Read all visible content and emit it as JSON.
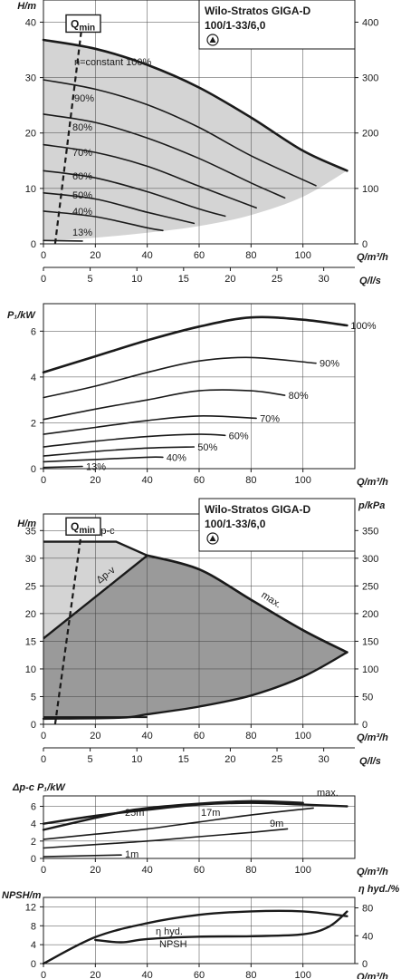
{
  "colors": {
    "light_region": "#d4d4d4",
    "dark_region": "#9a9a9a",
    "curve": "#1a1a1a",
    "background": "#ffffff"
  },
  "icon": "wilo-pump-triangle-icon",
  "chart_data": [
    {
      "type": "line",
      "title": "Wilo-Stratos GIGA-D",
      "subtitle": "100/1-33/6,0",
      "xlabel": "Q/m³/h",
      "ylabel": "H/m",
      "y2label": "p/kPa",
      "x2label": "Q/l/s",
      "xlim": [
        0,
        120
      ],
      "ylim": [
        0,
        44
      ],
      "y2lim": [
        0,
        440
      ],
      "x2lim": [
        0,
        33.33
      ],
      "x_ticks": [
        "0",
        "20",
        "40",
        "60",
        "80",
        "100"
      ],
      "y_ticks": [
        "0",
        "10",
        "20",
        "30",
        "40"
      ],
      "y2_ticks": [
        "0",
        "100",
        "200",
        "300",
        "400"
      ],
      "x2_ticks": [
        "0",
        "5",
        "10",
        "15",
        "20",
        "25",
        "30"
      ],
      "qmin_label": "Q",
      "qmin_sub": "min",
      "qmin_line": {
        "x": [
          4.5,
          15
        ],
        "y": [
          0,
          40
        ]
      },
      "series": [
        {
          "label": "n=constant 100%",
          "x": [
            0,
            20,
            40,
            60,
            80,
            100,
            117
          ],
          "y": [
            36.8,
            35.2,
            32.3,
            28.2,
            22.8,
            16.8,
            13.2
          ]
        },
        {
          "label": "90%",
          "x": [
            0,
            20,
            40,
            60,
            80,
            105
          ],
          "y": [
            29.6,
            27.9,
            25.1,
            21.0,
            15.9,
            10.5
          ]
        },
        {
          "label": "80%",
          "x": [
            0,
            20,
            40,
            60,
            80,
            93
          ],
          "y": [
            23.4,
            21.9,
            19.1,
            15.4,
            11.0,
            8.3
          ]
        },
        {
          "label": "70%",
          "x": [
            0,
            20,
            40,
            60,
            82
          ],
          "y": [
            17.9,
            16.5,
            14.0,
            10.4,
            6.5
          ]
        },
        {
          "label": "60%",
          "x": [
            0,
            20,
            40,
            60,
            70
          ],
          "y": [
            13.2,
            11.9,
            9.4,
            6.3,
            5.0
          ]
        },
        {
          "label": "50%",
          "x": [
            0,
            20,
            40,
            58
          ],
          "y": [
            9.2,
            8.1,
            5.7,
            3.7
          ]
        },
        {
          "label": "40%",
          "x": [
            0,
            20,
            40,
            46
          ],
          "y": [
            5.9,
            4.9,
            2.9,
            2.4
          ]
        },
        {
          "label": "13%",
          "x": [
            0,
            15
          ],
          "y": [
            0.6,
            0.5
          ]
        }
      ],
      "region_boundary_x": [
        117,
        100,
        80,
        60,
        40,
        20,
        0
      ],
      "region_boundary_y": [
        13.2,
        8.5,
        5.2,
        3.2,
        2.0,
        1.1,
        0.5
      ]
    },
    {
      "type": "line",
      "xlabel": "Q/m³/h",
      "ylabel": "P₁/kW",
      "xlim": [
        0,
        120
      ],
      "ylim": [
        0,
        7.2
      ],
      "x_ticks": [
        "0",
        "20",
        "40",
        "60",
        "80",
        "100"
      ],
      "y_ticks": [
        "0",
        "2",
        "4",
        "6"
      ],
      "series": [
        {
          "label": "100%",
          "x": [
            0,
            20,
            40,
            60,
            80,
            100,
            117
          ],
          "y": [
            4.2,
            4.9,
            5.6,
            6.2,
            6.6,
            6.5,
            6.25
          ]
        },
        {
          "label": "90%",
          "x": [
            0,
            20,
            40,
            60,
            80,
            105
          ],
          "y": [
            3.1,
            3.6,
            4.2,
            4.7,
            4.85,
            4.6
          ]
        },
        {
          "label": "80%",
          "x": [
            0,
            20,
            40,
            60,
            80,
            93
          ],
          "y": [
            2.15,
            2.6,
            3.0,
            3.4,
            3.4,
            3.2
          ]
        },
        {
          "label": "70%",
          "x": [
            0,
            20,
            40,
            60,
            82
          ],
          "y": [
            1.5,
            1.8,
            2.1,
            2.3,
            2.2
          ]
        },
        {
          "label": "60%",
          "x": [
            0,
            20,
            40,
            60,
            70
          ],
          "y": [
            0.95,
            1.2,
            1.4,
            1.5,
            1.45
          ]
        },
        {
          "label": "50%",
          "x": [
            0,
            20,
            40,
            58
          ],
          "y": [
            0.55,
            0.75,
            0.9,
            0.95
          ]
        },
        {
          "label": "40%",
          "x": [
            0,
            20,
            40,
            46
          ],
          "y": [
            0.3,
            0.4,
            0.5,
            0.5
          ]
        },
        {
          "label": "13%",
          "x": [
            0,
            15
          ],
          "y": [
            0.05,
            0.1
          ]
        }
      ]
    },
    {
      "type": "area",
      "title": "Wilo-Stratos GIGA-D",
      "subtitle": "100/1-33/6,0",
      "xlabel": "Q/m³/h",
      "ylabel": "H/m",
      "y2label": "p/kPa",
      "x2label": "Q/l/s",
      "xlim": [
        0,
        120
      ],
      "ylim": [
        0,
        38
      ],
      "y2lim": [
        0,
        380
      ],
      "x2lim": [
        0,
        33.33
      ],
      "x_ticks": [
        "0",
        "20",
        "40",
        "60",
        "80",
        "100"
      ],
      "y_ticks": [
        "0",
        "5",
        "10",
        "15",
        "20",
        "25",
        "30",
        "35"
      ],
      "y2_ticks": [
        "0",
        "50",
        "100",
        "150",
        "200",
        "250",
        "300",
        "350"
      ],
      "x2_ticks": [
        "0",
        "5",
        "10",
        "15",
        "20",
        "25",
        "30"
      ],
      "qmin_label": "Q",
      "qmin_sub": "min",
      "qmin_line": {
        "x": [
          4.5,
          15
        ],
        "y": [
          0,
          36
        ]
      },
      "labels": {
        "dp_c": "Δp-c",
        "dp_v": "Δp-v",
        "max": "max."
      },
      "dp_c": {
        "x": [
          0,
          28,
          40
        ],
        "y": [
          33,
          33,
          30.5
        ]
      },
      "dp_v": {
        "x": [
          0,
          40
        ],
        "y": [
          15.5,
          30.5
        ]
      },
      "max_curve": {
        "x": [
          40,
          60,
          80,
          100,
          117
        ],
        "y": [
          30.5,
          28,
          22.5,
          17,
          13
        ]
      },
      "bottom_curve": {
        "x": [
          117,
          100,
          80,
          60,
          40,
          30,
          0
        ],
        "y": [
          13,
          8.6,
          5.2,
          3.2,
          1.8,
          1.2,
          1.0
        ]
      },
      "min_line": {
        "x": [
          0,
          40
        ],
        "y": [
          1.3,
          1.3
        ]
      }
    },
    {
      "type": "line",
      "xlabel": "Q/m³/h",
      "ylabel": "Δp-c P₁/kW",
      "xlim": [
        0,
        120
      ],
      "ylim": [
        0,
        7.2
      ],
      "x_ticks": [
        "0",
        "20",
        "40",
        "60",
        "80",
        "100"
      ],
      "y_ticks": [
        "0",
        "2",
        "4",
        "6"
      ],
      "series": [
        {
          "label": "max.",
          "x": [
            0,
            20,
            40,
            60,
            80,
            100,
            117
          ],
          "y": [
            4.0,
            4.9,
            5.6,
            6.2,
            6.4,
            6.2,
            6.0
          ]
        },
        {
          "label": "25m",
          "x": [
            0,
            28,
            40,
            60,
            80,
            100
          ],
          "y": [
            3.3,
            5.2,
            5.8,
            6.3,
            6.6,
            6.4
          ]
        },
        {
          "label": "17m",
          "x": [
            0,
            20,
            40,
            60,
            80,
            104
          ],
          "y": [
            2.2,
            2.8,
            3.4,
            4.2,
            5.0,
            5.8
          ]
        },
        {
          "label": "9m",
          "x": [
            0,
            20,
            40,
            60,
            80,
            94
          ],
          "y": [
            1.2,
            1.6,
            2.0,
            2.5,
            3.0,
            3.4
          ]
        },
        {
          "label": "1m",
          "x": [
            0,
            30
          ],
          "y": [
            0.2,
            0.4
          ]
        }
      ]
    },
    {
      "type": "line",
      "xlabel": "Q/m³/h",
      "ylabel": "NPSH/m",
      "y2label": "η hyd./%",
      "xlim": [
        0,
        120
      ],
      "ylim": [
        0,
        14
      ],
      "y2lim": [
        0,
        95
      ],
      "x_ticks": [
        "0",
        "20",
        "40",
        "60",
        "80",
        "100"
      ],
      "y_ticks": [
        "0",
        "4",
        "8",
        "12"
      ],
      "y2_ticks": [
        "0",
        "40",
        "80"
      ],
      "series": [
        {
          "label": "η hyd.",
          "axis": "right",
          "x": [
            0,
            20,
            40,
            60,
            80,
            100,
            117
          ],
          "y": [
            0,
            38,
            58,
            70,
            75,
            75,
            68
          ]
        },
        {
          "label": "NPSH",
          "axis": "left",
          "x": [
            20,
            30,
            40,
            60,
            80,
            100,
            110,
            117
          ],
          "y": [
            5.0,
            4.5,
            5.2,
            5.7,
            5.8,
            6.2,
            7.8,
            11.0
          ]
        }
      ]
    }
  ]
}
